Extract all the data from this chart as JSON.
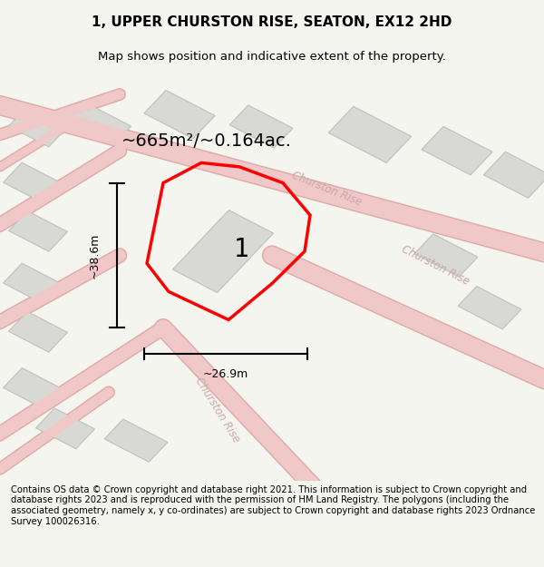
{
  "title": "1, UPPER CHURSTON RISE, SEATON, EX12 2HD",
  "subtitle": "Map shows position and indicative extent of the property.",
  "area_label": "~665m²/~0.164ac.",
  "width_label": "~26.9m",
  "height_label": "~38.6m",
  "plot_number": "1",
  "footer": "Contains OS data © Crown copyright and database right 2021. This information is subject to Crown copyright and database rights 2023 and is reproduced with the permission of HM Land Registry. The polygons (including the associated geometry, namely x, y co-ordinates) are subject to Crown copyright and database rights 2023 Ordnance Survey 100026316.",
  "bg_color": "#f5f5f0",
  "map_bg": "#f0f0eb",
  "road_color": "#f0c8c8",
  "road_outline": "#e0a8a8",
  "building_color": "#d8d8d4",
  "building_outline": "#c0c0bc",
  "plot_color": "#ff0000",
  "road_label_color": "#c8a8a8",
  "title_color": "#000000",
  "footer_color": "#000000",
  "dim_color": "#000000"
}
